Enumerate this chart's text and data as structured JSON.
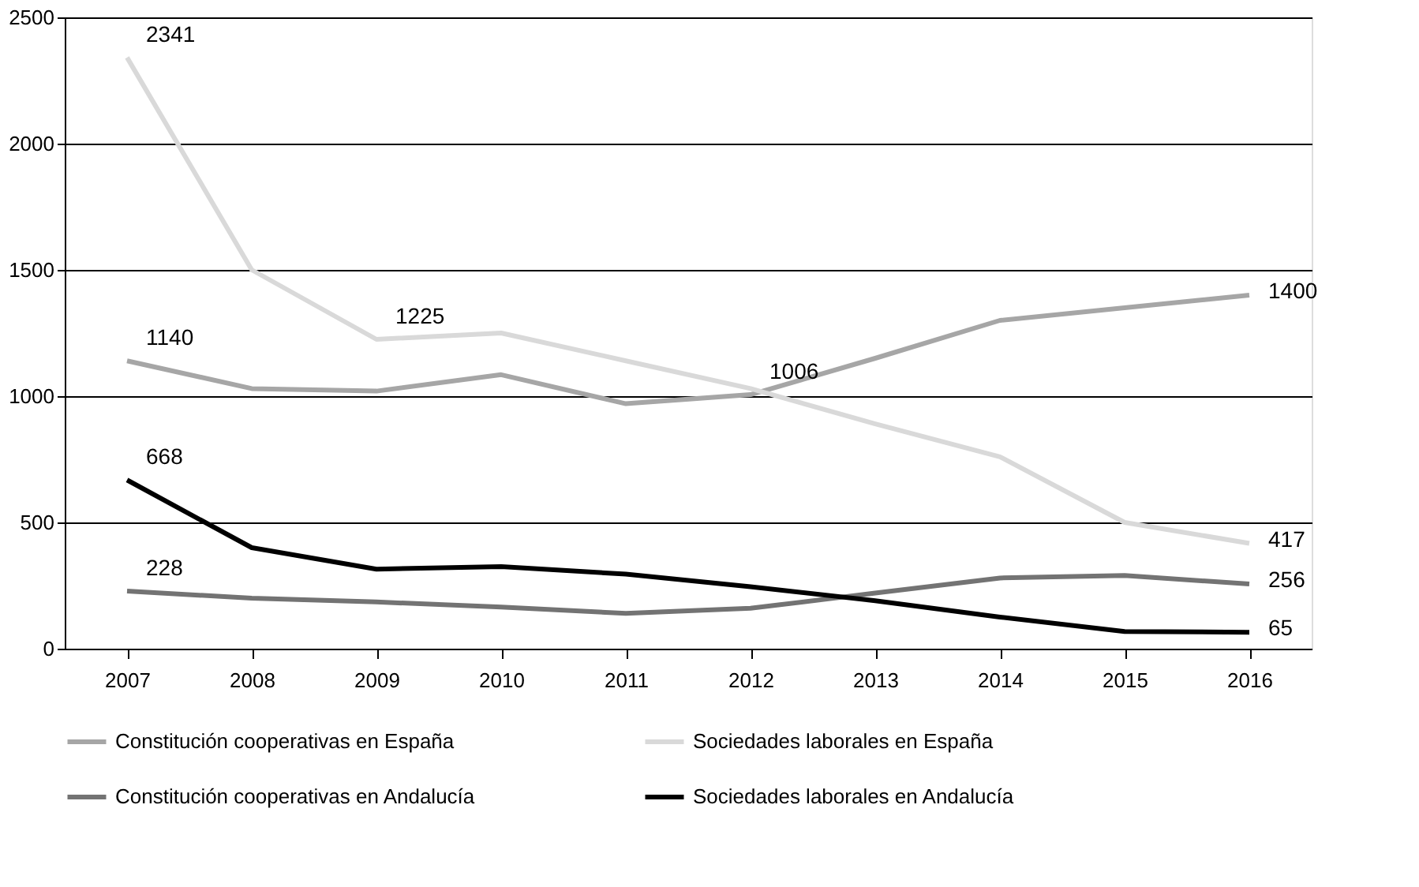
{
  "chart_data": {
    "type": "line",
    "categories": [
      "2007",
      "2008",
      "2009",
      "2010",
      "2011",
      "2012",
      "2013",
      "2014",
      "2015",
      "2016"
    ],
    "series": [
      {
        "name": "Constitución cooperativas en España",
        "color": "#a6a6a6",
        "values": [
          1140,
          1030,
          1020,
          1085,
          970,
          1006,
          1150,
          1300,
          1350,
          1400
        ],
        "value_labels": [
          "1140",
          null,
          null,
          null,
          null,
          "1006",
          null,
          null,
          null,
          "1400"
        ]
      },
      {
        "name": "Sociedades laborales en España",
        "color": "#d9d9d9",
        "values": [
          2341,
          1500,
          1225,
          1250,
          1140,
          1030,
          890,
          760,
          500,
          417
        ],
        "value_labels": [
          "2341",
          null,
          "1225",
          null,
          null,
          null,
          null,
          null,
          null,
          "417"
        ]
      },
      {
        "name": "Constitución cooperativas en Andalucía",
        "color": "#737373",
        "values": [
          228,
          200,
          185,
          165,
          140,
          160,
          220,
          280,
          290,
          256
        ],
        "value_labels": [
          "228",
          null,
          null,
          null,
          null,
          null,
          null,
          null,
          null,
          "256"
        ]
      },
      {
        "name": "Sociedades laborales en Andalucía",
        "color": "#000000",
        "values": [
          668,
          400,
          315,
          325,
          295,
          245,
          190,
          125,
          68,
          65
        ],
        "value_labels": [
          "668",
          null,
          null,
          null,
          null,
          null,
          null,
          null,
          null,
          "65"
        ]
      }
    ],
    "ylim": [
      0,
      2500
    ],
    "yticks": [
      0,
      500,
      1000,
      1500,
      2000,
      2500
    ],
    "grid": "y",
    "legend": "bottom",
    "marker": "none",
    "line_style": "solid"
  }
}
